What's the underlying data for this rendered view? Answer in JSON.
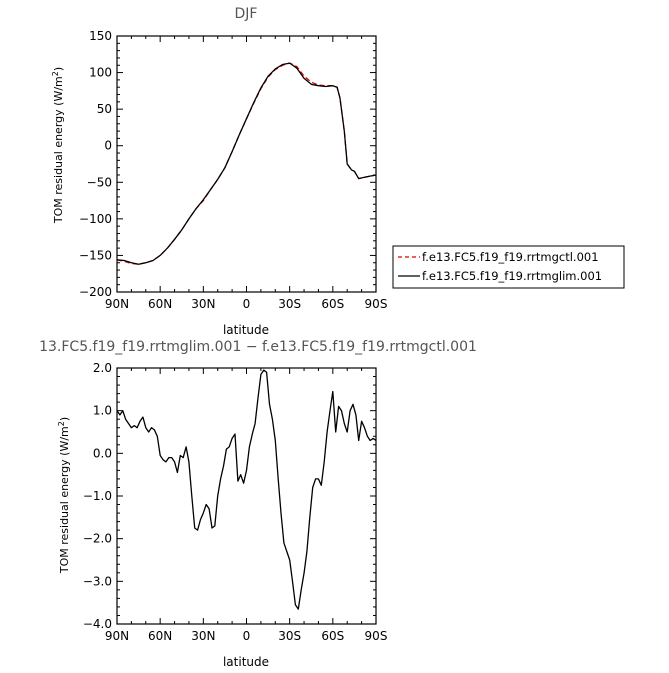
{
  "chart_data": [
    {
      "type": "line",
      "title": "DJF",
      "xlabel": "latitude",
      "ylabel": "TOM residual energy (W/m²)",
      "ylabel_main": "TOM residual energy (W/m",
      "ylabel_sup": "2",
      "ylabel_tail": ")",
      "xlim": [
        -90,
        90
      ],
      "ylim": [
        -200,
        150
      ],
      "x_ticks": [
        -90,
        -60,
        -30,
        0,
        30,
        60,
        90
      ],
      "x_tick_labels": [
        "90N",
        "60N",
        "30N",
        "0",
        "30S",
        "60S",
        "90S"
      ],
      "y_ticks": [
        -200,
        -150,
        -100,
        -50,
        0,
        50,
        100,
        150
      ],
      "y_tick_labels": [
        "−200",
        "−150",
        "−100",
        "−50",
        "0",
        "50",
        "100",
        "150"
      ],
      "legend": {
        "placement": "right",
        "entries": [
          "f.e13.FC5.f19_f19.rrtmgctl.001",
          "f.e13.FC5.f19_f19.rrtmglim.001"
        ]
      },
      "series": [
        {
          "name": "f.e13.FC5.f19_f19.rrtmgctl.001",
          "color": "#dd0000",
          "dash": true,
          "x": [
            -90,
            -85,
            -80,
            -75,
            -70,
            -65,
            -60,
            -55,
            -50,
            -45,
            -40,
            -35,
            -30,
            -25,
            -20,
            -15,
            -10,
            -5,
            0,
            5,
            10,
            15,
            20,
            25,
            30,
            35,
            40,
            45,
            50,
            55,
            60,
            63,
            65,
            68,
            70,
            73,
            75,
            78,
            80,
            85,
            90
          ],
          "y": [
            -156,
            -158,
            -161,
            -162,
            -160,
            -157,
            -150,
            -140,
            -128,
            -115,
            -100,
            -86,
            -75,
            -60,
            -46,
            -30,
            -8,
            15,
            37,
            58,
            78,
            94,
            104,
            110,
            113,
            108,
            95,
            87,
            83,
            82,
            82,
            80,
            65,
            20,
            -25,
            -33,
            -35,
            -45,
            -44,
            -42,
            -40
          ]
        },
        {
          "name": "f.e13.FC5.f19_f19.rrtmglim.001",
          "color": "#000000",
          "dash": false,
          "x": [
            -90,
            -85,
            -80,
            -75,
            -70,
            -65,
            -60,
            -55,
            -50,
            -45,
            -40,
            -35,
            -30,
            -25,
            -20,
            -15,
            -10,
            -5,
            0,
            5,
            10,
            15,
            20,
            25,
            30,
            35,
            40,
            45,
            50,
            55,
            60,
            63,
            65,
            68,
            70,
            73,
            75,
            78,
            80,
            85,
            90
          ],
          "y": [
            -156,
            -157,
            -160,
            -162,
            -160,
            -157,
            -150,
            -140,
            -128,
            -115,
            -100,
            -86,
            -74,
            -60,
            -46,
            -30,
            -8,
            15,
            37,
            59,
            79,
            95,
            105,
            111,
            113,
            106,
            92,
            84,
            82,
            81,
            82,
            80,
            65,
            20,
            -25,
            -33,
            -35,
            -45,
            -44,
            -42,
            -40
          ]
        }
      ]
    },
    {
      "type": "line",
      "title": "13.FC5.f19_f19.rrtmglim.001 − f.e13.FC5.f19_f19.rrtmgctl.001",
      "xlabel": "latitude",
      "ylabel": "TOM residual energy (W/m²)",
      "ylabel_main": "TOM residual energy (W/m",
      "ylabel_sup": "2",
      "ylabel_tail": ")",
      "xlim": [
        -90,
        90
      ],
      "ylim": [
        -4.0,
        2.0
      ],
      "x_ticks": [
        -90,
        -60,
        -30,
        0,
        30,
        60,
        90
      ],
      "x_tick_labels": [
        "90N",
        "60N",
        "30N",
        "0",
        "30S",
        "60S",
        "90S"
      ],
      "y_ticks": [
        -4.0,
        -3.0,
        -2.0,
        -1.0,
        0.0,
        1.0,
        2.0
      ],
      "y_tick_labels": [
        "−4.0",
        "−3.0",
        "−2.0",
        "−1.0",
        "0.0",
        "1.0",
        "2.0"
      ],
      "series": [
        {
          "name": "",
          "color": "#000000",
          "dash": false,
          "x": [
            -90,
            -88,
            -86,
            -84,
            -82,
            -80,
            -78,
            -76,
            -74,
            -72,
            -70,
            -68,
            -66,
            -64,
            -62,
            -60,
            -58,
            -56,
            -54,
            -52,
            -50,
            -48,
            -46,
            -44,
            -42,
            -40,
            -38,
            -36,
            -34,
            -32,
            -30,
            -28,
            -26,
            -24,
            -22,
            -20,
            -18,
            -16,
            -14,
            -12,
            -10,
            -8,
            -6,
            -4,
            -2,
            0,
            2,
            4,
            6,
            8,
            10,
            12,
            14,
            16,
            18,
            20,
            22,
            24,
            26,
            28,
            30,
            32,
            34,
            36,
            38,
            40,
            42,
            44,
            46,
            48,
            50,
            52,
            54,
            56,
            58,
            60,
            62,
            64,
            66,
            68,
            70,
            72,
            74,
            76,
            78,
            80,
            82,
            84,
            86,
            88,
            90
          ],
          "y": [
            1.0,
            0.9,
            1.0,
            0.8,
            0.7,
            0.6,
            0.65,
            0.6,
            0.75,
            0.85,
            0.6,
            0.5,
            0.6,
            0.55,
            0.4,
            -0.05,
            -0.15,
            -0.2,
            -0.1,
            -0.1,
            -0.2,
            -0.45,
            -0.05,
            -0.1,
            0.15,
            -0.2,
            -1.0,
            -1.75,
            -1.8,
            -1.55,
            -1.4,
            -1.2,
            -1.3,
            -1.75,
            -1.7,
            -1.0,
            -0.6,
            -0.3,
            0.1,
            0.15,
            0.35,
            0.45,
            -0.65,
            -0.5,
            -0.7,
            -0.4,
            0.15,
            0.45,
            0.7,
            1.3,
            1.85,
            1.95,
            1.9,
            1.15,
            0.8,
            0.3,
            -0.6,
            -1.4,
            -2.1,
            -2.3,
            -2.5,
            -3.0,
            -3.55,
            -3.65,
            -3.2,
            -2.8,
            -2.3,
            -1.5,
            -0.8,
            -0.6,
            -0.6,
            -0.75,
            -0.2,
            0.5,
            1.0,
            1.45,
            0.5,
            1.1,
            1.0,
            0.7,
            0.5,
            1.0,
            1.15,
            0.9,
            0.3,
            0.75,
            0.6,
            0.4,
            0.3,
            0.35,
            0.3
          ]
        }
      ]
    }
  ]
}
